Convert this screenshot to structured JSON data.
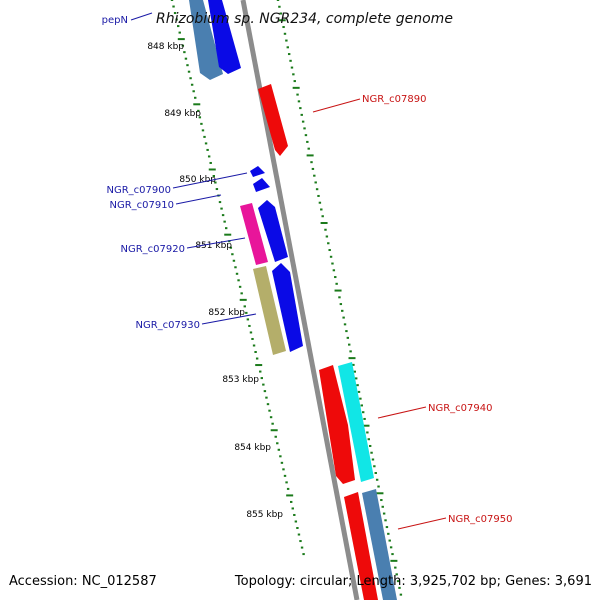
{
  "title": "Rhizobium sp. NGR234, complete genome",
  "footer": {
    "accession": "Accession: NC_012587",
    "topology": "Topology: circular; Length: 3,925,702 bp; Genes: 3,691"
  },
  "colors": {
    "backbone": "#8c8c8c",
    "ticks": "#1a7a1a",
    "label_blue": "#1a1aa6",
    "label_red": "#c81414",
    "blue": "#0a0ae6",
    "steel": "#4a7fb0",
    "red": "#ee0a0a",
    "pink": "#e8159a",
    "olive": "#b4ae6a",
    "cyan": "#11e6e6"
  },
  "ruler": {
    "labels": [
      "848 kbp",
      "849 kbp",
      "850 kbp",
      "851 kbp",
      "852 kbp",
      "853 kbp",
      "854 kbp",
      "855 kbp"
    ]
  },
  "gene_labels": [
    {
      "id": "pepN",
      "text": "pepN",
      "color": "blue"
    },
    {
      "id": "ngr-c07890",
      "text": "NGR_c07890",
      "color": "red"
    },
    {
      "id": "ngr-c07900",
      "text": "NGR_c07900",
      "color": "blue"
    },
    {
      "id": "ngr-c07910",
      "text": "NGR_c07910",
      "color": "blue"
    },
    {
      "id": "ngr-c07920",
      "text": "NGR_c07920",
      "color": "blue"
    },
    {
      "id": "ngr-c07930",
      "text": "NGR_c07930",
      "color": "blue"
    },
    {
      "id": "ngr-c07940",
      "text": "NGR_c07940",
      "color": "red"
    },
    {
      "id": "ngr-c07950",
      "text": "NGR_c07950",
      "color": "red"
    }
  ],
  "features": [
    {
      "id": "pepN-a",
      "color": "steel"
    },
    {
      "id": "pepN-b",
      "color": "blue"
    },
    {
      "id": "ngr-c07890",
      "color": "red"
    },
    {
      "id": "ngr-c07900",
      "color": "blue"
    },
    {
      "id": "ngr-c07910",
      "color": "blue"
    },
    {
      "id": "ngr-c07920-a",
      "color": "pink"
    },
    {
      "id": "ngr-c07920-b",
      "color": "blue"
    },
    {
      "id": "ngr-c07930-a",
      "color": "olive"
    },
    {
      "id": "ngr-c07930-b",
      "color": "blue"
    },
    {
      "id": "ngr-c07940-a",
      "color": "red"
    },
    {
      "id": "ngr-c07940-b",
      "color": "cyan"
    },
    {
      "id": "ngr-c07950-a",
      "color": "red"
    },
    {
      "id": "ngr-c07950-b",
      "color": "steel"
    }
  ]
}
